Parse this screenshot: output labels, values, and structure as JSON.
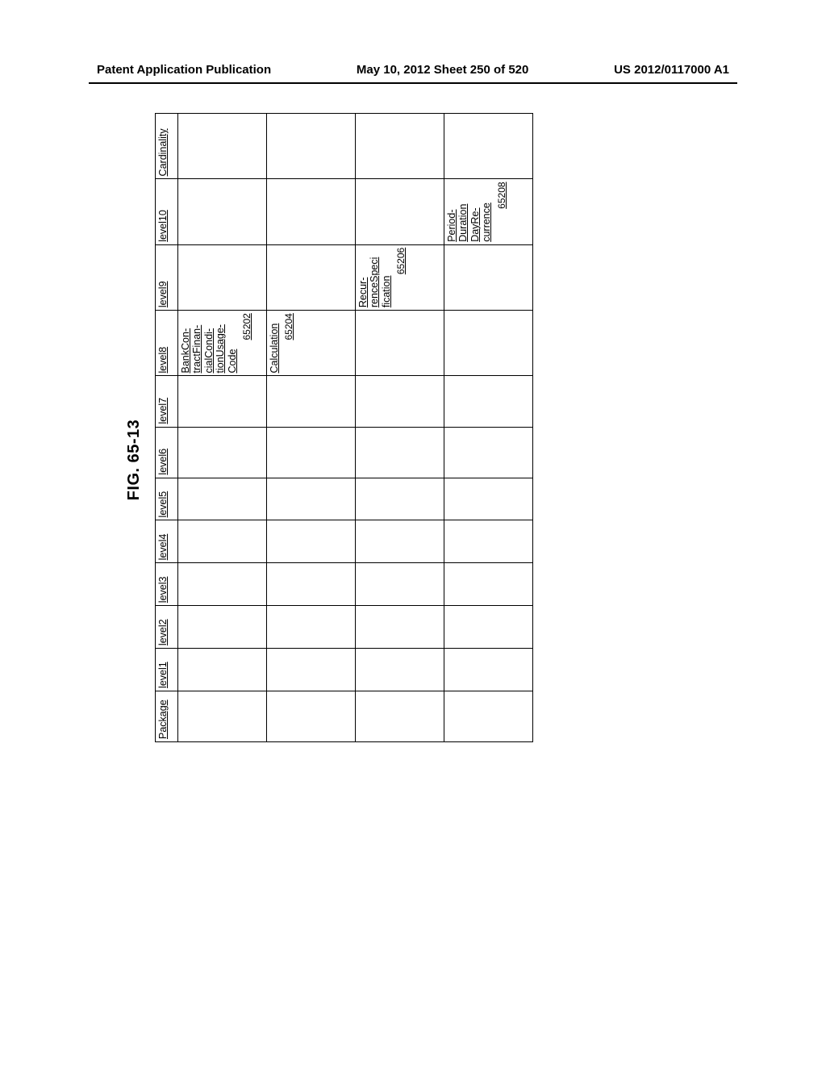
{
  "header": {
    "left": "Patent Application Publication",
    "center": "May 10, 2012  Sheet 250 of 520",
    "right": "US 2012/0117000 A1"
  },
  "figure": {
    "title": "FIG. 65-13",
    "columns": [
      "Package",
      "level1",
      "level2",
      "level3",
      "level4",
      "level5",
      "level6",
      "level7",
      "level8",
      "level9",
      "level10",
      "Cardinality"
    ],
    "rows": [
      {
        "level8_label": "BankCon-tractFinan-cialCondi-tionUsage-Code",
        "level8_ref": "65202"
      },
      {
        "level8_label": "Calculation",
        "level8_ref": "65204"
      },
      {
        "level9_label": "Recur-renceSpeci fication",
        "level9_ref": "65206"
      },
      {
        "level10_label": "Period-Duration DayRe-currence",
        "level10_ref": "65208"
      }
    ]
  }
}
